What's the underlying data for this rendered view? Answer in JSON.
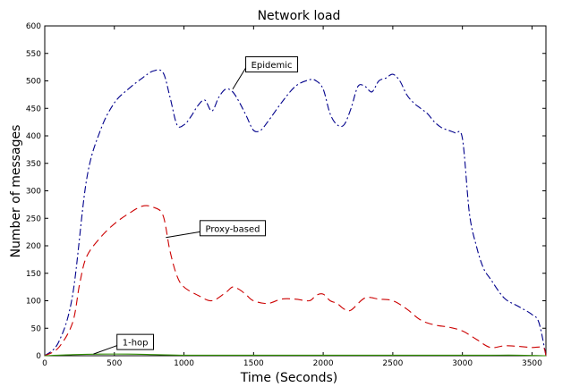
{
  "chart_data": {
    "type": "line",
    "title": "Network load",
    "xlabel": "Time (Seconds)",
    "ylabel": "Number of messages",
    "xlim": [
      0,
      3600
    ],
    "ylim": [
      0,
      600
    ],
    "xticks": [
      0,
      500,
      1000,
      1500,
      2000,
      2500,
      3000,
      3500
    ],
    "yticks": [
      0,
      50,
      100,
      150,
      200,
      250,
      300,
      350,
      400,
      450,
      500,
      550,
      600
    ],
    "grid": false,
    "legend": "none",
    "series": [
      {
        "name": "Epidemic",
        "color": "#00008b",
        "dash": "dashdot",
        "x": [
          0,
          100,
          200,
          300,
          400,
          500,
          600,
          700,
          780,
          850,
          900,
          950,
          1000,
          1050,
          1100,
          1150,
          1200,
          1250,
          1300,
          1350,
          1400,
          1450,
          1500,
          1550,
          1600,
          1700,
          1800,
          1900,
          1950,
          2000,
          2050,
          2100,
          2150,
          2200,
          2250,
          2300,
          2350,
          2400,
          2450,
          2500,
          2550,
          2600,
          2650,
          2700,
          2750,
          2800,
          2850,
          2900,
          2950,
          3000,
          3050,
          3100,
          3150,
          3200,
          3300,
          3400,
          3500,
          3550,
          3600
        ],
        "y": [
          0,
          25,
          110,
          320,
          410,
          460,
          485,
          505,
          518,
          515,
          470,
          420,
          420,
          435,
          455,
          465,
          445,
          470,
          485,
          480,
          460,
          435,
          410,
          410,
          425,
          460,
          490,
          502,
          500,
          485,
          440,
          420,
          420,
          450,
          490,
          490,
          480,
          500,
          505,
          512,
          500,
          475,
          460,
          450,
          440,
          425,
          415,
          410,
          405,
          395,
          260,
          200,
          160,
          140,
          105,
          90,
          75,
          60,
          0
        ]
      },
      {
        "name": "Proxy-based",
        "color": "#cc0000",
        "dash": "dashed",
        "x": [
          0,
          100,
          200,
          250,
          300,
          400,
          500,
          600,
          700,
          780,
          850,
          900,
          950,
          1000,
          1100,
          1200,
          1300,
          1350,
          1400,
          1450,
          1500,
          1600,
          1700,
          1800,
          1900,
          1950,
          2000,
          2050,
          2100,
          2150,
          2200,
          2300,
          2400,
          2500,
          2600,
          2700,
          2800,
          2900,
          3000,
          3100,
          3200,
          3300,
          3400,
          3500,
          3580,
          3600
        ],
        "y": [
          0,
          15,
          60,
          130,
          180,
          215,
          240,
          258,
          272,
          270,
          255,
          190,
          145,
          125,
          110,
          100,
          115,
          125,
          120,
          110,
          100,
          95,
          103,
          103,
          100,
          110,
          112,
          100,
          95,
          85,
          83,
          105,
          103,
          100,
          85,
          65,
          56,
          52,
          45,
          30,
          15,
          18,
          17,
          15,
          15,
          0
        ]
      },
      {
        "name": "1-hop",
        "color": "#2e8b00",
        "dash": "solid",
        "x": [
          0,
          200,
          400,
          600,
          800,
          1000,
          1200,
          1400,
          1600,
          1800,
          2000,
          2200,
          2400,
          2600,
          2800,
          3000,
          3200,
          3400,
          3600
        ],
        "y": [
          0,
          2,
          3,
          3,
          2,
          1,
          1,
          1,
          1,
          1,
          1,
          1,
          1,
          1,
          1,
          1,
          1,
          1,
          0
        ]
      }
    ],
    "annotations": [
      {
        "text": "Epidemic",
        "x": 1350,
        "y": 485,
        "text_x": 1630,
        "text_y": 530
      },
      {
        "text": "Proxy-based",
        "x": 870,
        "y": 215,
        "text_x": 1350,
        "text_y": 232
      },
      {
        "text": "1-hop",
        "x": 350,
        "y": 3,
        "text_x": 650,
        "text_y": 25
      }
    ]
  }
}
